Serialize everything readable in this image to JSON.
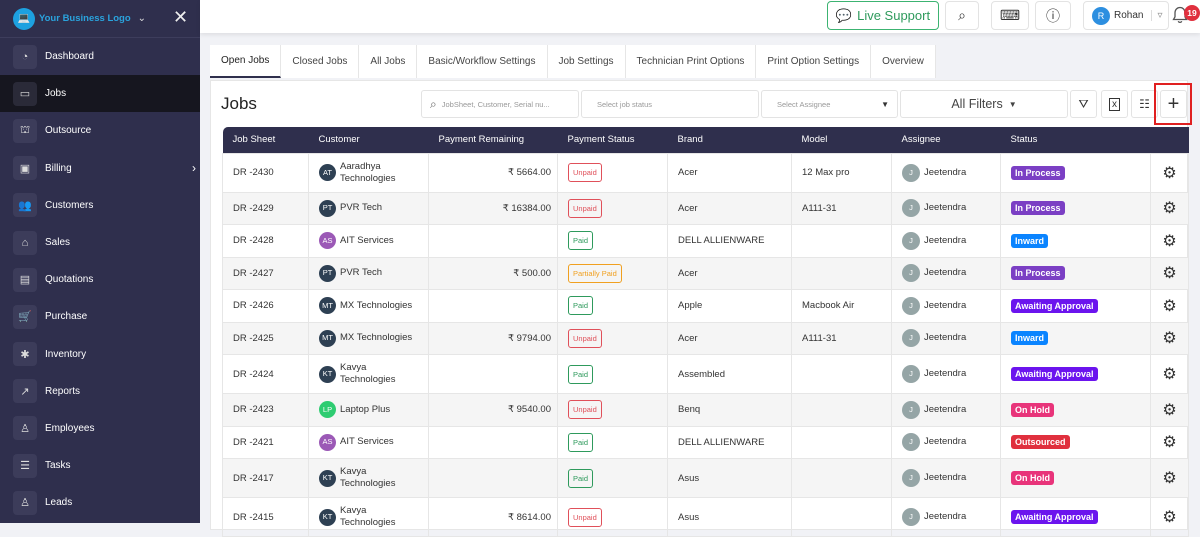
{
  "sidebar": {
    "logo_text": "Your Business Logo",
    "items": [
      {
        "label": "Dashboard",
        "icon": "dashboard-icon",
        "glyph": "◔"
      },
      {
        "label": "Jobs",
        "icon": "jobs-icon",
        "glyph": "▭",
        "active": true
      },
      {
        "label": "Outsource",
        "icon": "outsource-icon",
        "glyph": "⛫"
      },
      {
        "label": "Billing",
        "icon": "billing-icon",
        "glyph": "▣",
        "chevron": true
      },
      {
        "label": "Customers",
        "icon": "customers-icon",
        "glyph": "👥"
      },
      {
        "label": "Sales",
        "icon": "sales-icon",
        "glyph": "⌂"
      },
      {
        "label": "Quotations",
        "icon": "quotations-icon",
        "glyph": "▤"
      },
      {
        "label": "Purchase",
        "icon": "purchase-icon",
        "glyph": "🛒"
      },
      {
        "label": "Inventory",
        "icon": "inventory-icon",
        "glyph": "✱"
      },
      {
        "label": "Reports",
        "icon": "reports-icon",
        "glyph": "↗"
      },
      {
        "label": "Employees",
        "icon": "employees-icon",
        "glyph": "♙"
      },
      {
        "label": "Tasks",
        "icon": "tasks-icon",
        "glyph": "☰"
      },
      {
        "label": "Leads",
        "icon": "leads-icon",
        "glyph": "♙"
      }
    ]
  },
  "topbar": {
    "live_support": "Live Support",
    "user_initial": "R",
    "user_name": "Rohan",
    "notification_count": "19"
  },
  "tabs": [
    "Open Jobs",
    "Closed Jobs",
    "All Jobs",
    "Basic/Workflow Settings",
    "Job Settings",
    "Technician Print Options",
    "Print Option Settings",
    "Overview"
  ],
  "page": {
    "title": "Jobs",
    "search_placeholder": "JobSheet, Customer, Serial nu...",
    "job_status_placeholder": "Select job status",
    "assignee_placeholder": "Select Assignee",
    "all_filters": "All Filters"
  },
  "colors": {
    "in_process": "#7b3fc4",
    "inward": "#0a84ff",
    "awaiting_approval": "#6b14ee",
    "on_hold": "#e8347a",
    "outsourced": "#e0303e"
  },
  "table": {
    "headers": [
      "Job Sheet",
      "Customer",
      "Payment Remaining",
      "Payment Status",
      "Brand",
      "Model",
      "Assignee",
      "Status"
    ],
    "rows": [
      {
        "job": "DR -2430",
        "initials": "AT",
        "avcolor": "#2e4053",
        "customer": "Aaradhya Technologies",
        "remaining": "₹ 5664.00",
        "pay": "Unpaid",
        "brand": "Acer",
        "model": "12 Max pro",
        "assignee": "Jeetendra",
        "status": "In Process",
        "scolor": "#7b3fc4"
      },
      {
        "job": "DR -2429",
        "initials": "PT",
        "avcolor": "#2e4053",
        "customer": "PVR Tech",
        "remaining": "₹ 16384.00",
        "pay": "Unpaid",
        "brand": "Acer",
        "model": "A111-31",
        "assignee": "Jeetendra",
        "status": "In Process",
        "scolor": "#7b3fc4"
      },
      {
        "job": "DR -2428",
        "initials": "AS",
        "avcolor": "#9b59b6",
        "customer": "AIT Services",
        "remaining": "",
        "pay": "Paid",
        "brand": "DELL ALLIENWARE",
        "model": "",
        "assignee": "Jeetendra",
        "status": "Inward",
        "scolor": "#0a84ff"
      },
      {
        "job": "DR -2427",
        "initials": "PT",
        "avcolor": "#2e4053",
        "customer": "PVR Tech",
        "remaining": "₹ 500.00",
        "pay": "Partially Paid",
        "brand": "Acer",
        "model": "",
        "assignee": "Jeetendra",
        "status": "In Process",
        "scolor": "#7b3fc4"
      },
      {
        "job": "DR -2426",
        "initials": "MT",
        "avcolor": "#2e4053",
        "customer": "MX Technologies",
        "remaining": "",
        "pay": "Paid",
        "brand": "Apple",
        "model": "Macbook Air",
        "assignee": "Jeetendra",
        "status": "Awaiting Approval",
        "scolor": "#6b14ee"
      },
      {
        "job": "DR -2425",
        "initials": "MT",
        "avcolor": "#2e4053",
        "customer": "MX Technologies",
        "remaining": "₹ 9794.00",
        "pay": "Unpaid",
        "brand": "Acer",
        "model": "A111-31",
        "assignee": "Jeetendra",
        "status": "Inward",
        "scolor": "#0a84ff"
      },
      {
        "job": "DR -2424",
        "initials": "KT",
        "avcolor": "#2e4053",
        "customer": "Kavya Technologies",
        "remaining": "",
        "pay": "Paid",
        "brand": "Assembled",
        "model": "",
        "assignee": "Jeetendra",
        "status": "Awaiting Approval",
        "scolor": "#6b14ee"
      },
      {
        "job": "DR -2423",
        "initials": "LP",
        "avcolor": "#2ecc71",
        "customer": "Laptop Plus",
        "remaining": "₹ 9540.00",
        "pay": "Unpaid",
        "brand": "Benq",
        "model": "",
        "assignee": "Jeetendra",
        "status": "On Hold",
        "scolor": "#e8347a"
      },
      {
        "job": "DR -2421",
        "initials": "AS",
        "avcolor": "#9b59b6",
        "customer": "AIT Services",
        "remaining": "",
        "pay": "Paid",
        "brand": "DELL ALLIENWARE",
        "model": "",
        "assignee": "Jeetendra",
        "status": "Outsourced",
        "scolor": "#e0303e"
      },
      {
        "job": "DR -2417",
        "initials": "KT",
        "avcolor": "#2e4053",
        "customer": "Kavya Technologies",
        "remaining": "",
        "pay": "Paid",
        "brand": "Asus",
        "model": "",
        "assignee": "Jeetendra",
        "status": "On Hold",
        "scolor": "#e8347a"
      },
      {
        "job": "DR -2415",
        "initials": "KT",
        "avcolor": "#2e4053",
        "customer": "Kavya Technologies",
        "remaining": "₹ 8614.00",
        "pay": "Unpaid",
        "brand": "Asus",
        "model": "",
        "assignee": "Jeetendra",
        "status": "Awaiting Approval",
        "scolor": "#6b14ee"
      }
    ]
  }
}
